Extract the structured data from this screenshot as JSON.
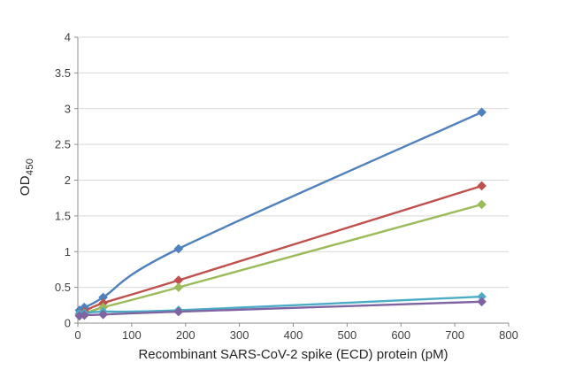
{
  "chart_data": {
    "type": "line",
    "title": "",
    "xlabel": "Recombinant SARS-CoV-2 spike (ECD) protein (pM)",
    "ylabel": {
      "main": "OD",
      "sub": "450"
    },
    "xlim": [
      0,
      800
    ],
    "ylim": [
      0,
      4
    ],
    "xticks": [
      0,
      100,
      200,
      300,
      400,
      500,
      600,
      700,
      800
    ],
    "yticks": [
      0,
      0.5,
      1,
      1.5,
      2,
      2.5,
      3,
      3.5,
      4
    ],
    "grid": "horizontal-only",
    "legend": "none",
    "marker": "diamond",
    "axis_color": "#8c8c8c",
    "grid_color": "#d9d9d9",
    "text_color": "#3f3f3f",
    "x": [
      3,
      12,
      47,
      187,
      750
    ],
    "series": [
      {
        "name": "blue",
        "color": "#4f81bd",
        "y": [
          0.18,
          0.22,
          0.36,
          1.04,
          2.95
        ]
      },
      {
        "name": "red",
        "color": "#c0504d",
        "y": [
          0.13,
          0.16,
          0.28,
          0.6,
          1.92
        ]
      },
      {
        "name": "green",
        "color": "#9bbb59",
        "y": [
          0.11,
          0.13,
          0.22,
          0.5,
          1.66
        ]
      },
      {
        "name": "cyan",
        "color": "#4bacc6",
        "y": [
          0.13,
          0.14,
          0.16,
          0.18,
          0.37
        ]
      },
      {
        "name": "purple",
        "color": "#8064a2",
        "y": [
          0.1,
          0.11,
          0.12,
          0.16,
          0.3
        ]
      }
    ]
  }
}
